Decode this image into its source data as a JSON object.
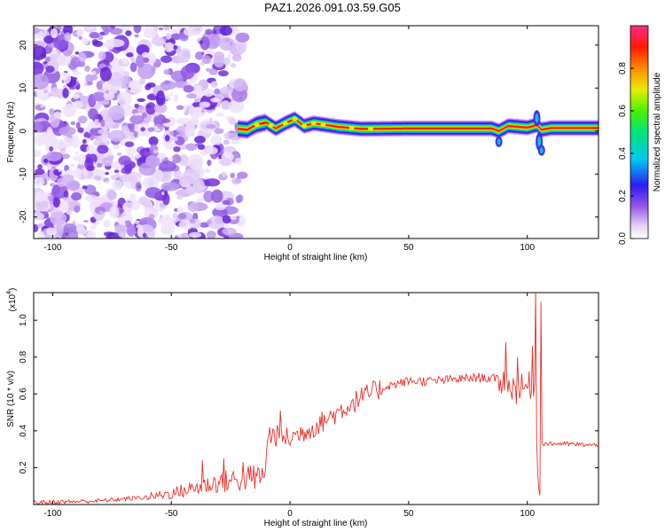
{
  "title": "PAZ1.2026.091.03.59.G05",
  "colors": {
    "snr_line": "#e8302a",
    "axis": "#000000",
    "background": "#ffffff"
  },
  "chart_data": [
    {
      "type": "heatmap",
      "xlabel": "Height of straight line (km)",
      "ylabel": "Frequency (Hz)",
      "xlim": [
        -108,
        130
      ],
      "ylim": [
        -25,
        24.5
      ],
      "xticks": [
        -100,
        -50,
        0,
        50,
        100
      ],
      "yticks": [
        20,
        10,
        0,
        -10,
        -20
      ],
      "ytick_labels": [
        "20",
        "10",
        "0",
        "-10",
        "-20"
      ],
      "noise_region_end_km": -22,
      "ridge": [
        {
          "h": -22,
          "f": 0.5
        },
        {
          "h": -18,
          "f": 0.3
        },
        {
          "h": -14,
          "f": 1.5
        },
        {
          "h": -10,
          "f": 2.0
        },
        {
          "h": -6,
          "f": 0.6
        },
        {
          "h": -2,
          "f": 1.8
        },
        {
          "h": 2,
          "f": 2.8
        },
        {
          "h": 6,
          "f": 1.2
        },
        {
          "h": 10,
          "f": 1.8
        },
        {
          "h": 14,
          "f": 1.5
        },
        {
          "h": 20,
          "f": 1.0
        },
        {
          "h": 30,
          "f": 0.5
        },
        {
          "h": 50,
          "f": 0.6
        },
        {
          "h": 85,
          "f": 0.6
        },
        {
          "h": 88,
          "f": 0.0
        },
        {
          "h": 92,
          "f": 1.2
        },
        {
          "h": 100,
          "f": 0.8
        },
        {
          "h": 104,
          "f": 1.4
        },
        {
          "h": 106,
          "f": 0.3
        },
        {
          "h": 110,
          "f": 0.7
        },
        {
          "h": 130,
          "f": 0.7
        }
      ],
      "colorbar": {
        "label": "Normalized spectral amplitude",
        "range": [
          0,
          1
        ],
        "ticks": [
          0.0,
          0.2,
          0.4,
          0.6,
          0.8
        ],
        "tick_labels": [
          "0.0",
          "0.2",
          "0.4",
          "0.6",
          "0.8"
        ]
      }
    },
    {
      "type": "line",
      "xlabel": "Height of straight line (km)",
      "ylabel": "SNR (10 * v/v)",
      "exponent_label": "(x10",
      "exponent_power": "4",
      "exponent_close": ")",
      "xlim": [
        -108,
        130
      ],
      "ylim": [
        0.0,
        1.15
      ],
      "xticks": [
        -100,
        -50,
        0,
        50,
        100
      ],
      "yticks": [
        0.2,
        0.4,
        0.6,
        0.8,
        1.0
      ],
      "ytick_labels": [
        "0.2",
        "0.4",
        "0.6",
        "0.8",
        "1.0"
      ],
      "series": [
        {
          "name": "SNR",
          "profile": [
            {
              "h": -108,
              "v": 0.01
            },
            {
              "h": -80,
              "v": 0.02
            },
            {
              "h": -60,
              "v": 0.04
            },
            {
              "h": -50,
              "v": 0.06
            },
            {
              "h": -40,
              "v": 0.09
            },
            {
              "h": -30,
              "v": 0.12
            },
            {
              "h": -20,
              "v": 0.14
            },
            {
              "h": -11,
              "v": 0.15
            },
            {
              "h": -9,
              "v": 0.38
            },
            {
              "h": 0,
              "v": 0.36
            },
            {
              "h": 10,
              "v": 0.42
            },
            {
              "h": 20,
              "v": 0.5
            },
            {
              "h": 30,
              "v": 0.58
            },
            {
              "h": 40,
              "v": 0.64
            },
            {
              "h": 50,
              "v": 0.67
            },
            {
              "h": 60,
              "v": 0.67
            },
            {
              "h": 70,
              "v": 0.68
            },
            {
              "h": 80,
              "v": 0.69
            },
            {
              "h": 88,
              "v": 0.68
            },
            {
              "h": 95,
              "v": 0.62
            },
            {
              "h": 100,
              "v": 0.64
            },
            {
              "h": 103,
              "v": 0.66
            },
            {
              "h": 104.6,
              "v": 0.1
            },
            {
              "h": 106,
              "v": 0.33
            },
            {
              "h": 115,
              "v": 0.33
            },
            {
              "h": 130,
              "v": 0.32
            }
          ],
          "spikes": [
            {
              "h": -37,
              "v": 0.24
            },
            {
              "h": -28,
              "v": 0.25
            },
            {
              "h": -20,
              "v": 0.23
            },
            {
              "h": -4,
              "v": 0.51
            },
            {
              "h": 91,
              "v": 0.88
            },
            {
              "h": 96,
              "v": 0.8
            },
            {
              "h": 102,
              "v": 0.86
            },
            {
              "h": 103.5,
              "v": 1.16
            },
            {
              "h": 105.2,
              "v": 0.05
            },
            {
              "h": 105.8,
              "v": 1.1
            }
          ]
        }
      ]
    }
  ]
}
